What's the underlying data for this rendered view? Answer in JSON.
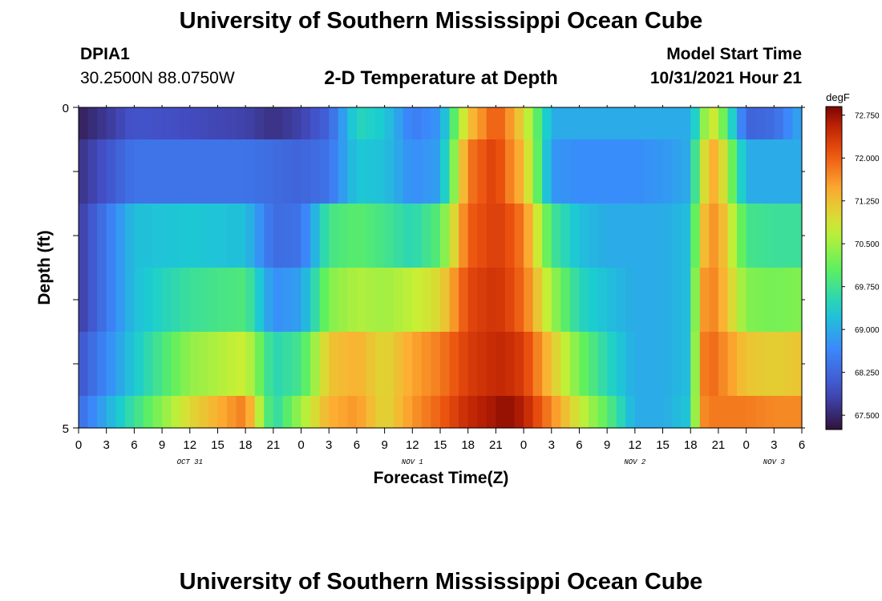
{
  "page": {
    "title_top": "University of Southern Mississippi Ocean Cube",
    "title_bottom": "University of Southern Mississippi Ocean Cube",
    "station_id": "DPIA1",
    "station_coords": "30.2500N  88.0750W",
    "center_title": "2-D Temperature at Depth",
    "model_start_label": "Model Start Time",
    "model_start_value": "10/31/2021 Hour 21"
  },
  "chart_data": {
    "type": "heatmap",
    "title": "2-D Temperature at Depth",
    "xlabel": "Forecast Time(Z)",
    "ylabel": "Depth (ft)",
    "y_tick_labels": [
      "0",
      "5"
    ],
    "ylim": [
      0,
      5
    ],
    "x_tick_labels": [
      "0",
      "3",
      "6",
      "9",
      "12",
      "15",
      "18",
      "21",
      "0",
      "3",
      "6",
      "9",
      "12",
      "15",
      "18",
      "21",
      "0",
      "3",
      "6",
      "9",
      "12",
      "15",
      "18",
      "21",
      "0",
      "3",
      "6"
    ],
    "date_labels": [
      {
        "text": "OCT 31",
        "at_hour": 12
      },
      {
        "text": "NOV 1",
        "at_hour": 36
      },
      {
        "text": "NOV 2",
        "at_hour": 60
      },
      {
        "text": "NOV 3",
        "at_hour": 75
      }
    ],
    "colorbar": {
      "units": "degF",
      "min": 67.25,
      "max": 72.9,
      "tick_values": [
        67.5,
        68.25,
        69.0,
        69.75,
        70.5,
        71.25,
        72.0,
        72.75
      ],
      "tick_labels": [
        "67.500",
        "68.250",
        "69.000",
        "69.750",
        "70.500",
        "71.250",
        "72.000",
        "72.750"
      ]
    },
    "hours": [
      0,
      6,
      12,
      18,
      21,
      24,
      27,
      30,
      33,
      36,
      39,
      42,
      45,
      46,
      48,
      51,
      54,
      57,
      60,
      63,
      66,
      67,
      68,
      69,
      70,
      72,
      75,
      78
    ],
    "rows": [
      {
        "depth_band": "0-0.5",
        "temps": [
          67.4,
          68.0,
          67.9,
          67.8,
          67.6,
          67.8,
          68.2,
          69.5,
          69.3,
          68.5,
          68.8,
          71.2,
          72.1,
          71.8,
          71.0,
          69.0,
          69.0,
          69.0,
          69.0,
          69.0,
          69.0,
          69.8,
          71.0,
          70.6,
          69.8,
          68.2,
          68.3,
          69.0
        ]
      },
      {
        "depth_band": "0.5-1.5",
        "temps": [
          67.6,
          68.4,
          68.4,
          68.4,
          68.3,
          68.2,
          68.4,
          69.3,
          69.2,
          68.7,
          68.9,
          71.8,
          72.3,
          71.9,
          71.3,
          68.8,
          68.7,
          68.7,
          68.7,
          68.8,
          69.0,
          70.5,
          71.4,
          71.4,
          70.5,
          69.0,
          69.0,
          69.0
        ]
      },
      {
        "depth_band": "1.5-2.5",
        "temps": [
          67.7,
          69.2,
          69.3,
          69.2,
          68.3,
          68.4,
          69.8,
          70.0,
          69.8,
          69.5,
          70.0,
          72.0,
          72.3,
          72.2,
          71.8,
          69.8,
          69.2,
          69.0,
          69.0,
          69.0,
          69.2,
          71.0,
          71.6,
          71.6,
          71.0,
          69.8,
          69.7,
          69.7
        ]
      },
      {
        "depth_band": "2.5-3.5",
        "temps": [
          67.7,
          69.2,
          69.7,
          69.9,
          68.7,
          68.9,
          70.3,
          70.6,
          70.5,
          70.7,
          71.0,
          72.2,
          72.4,
          72.3,
          71.9,
          70.5,
          69.5,
          69.2,
          69.0,
          69.0,
          69.2,
          71.4,
          71.8,
          71.6,
          71.2,
          70.3,
          70.2,
          70.3
        ]
      },
      {
        "depth_band": "3.5-4.5",
        "temps": [
          68.0,
          69.3,
          70.4,
          70.8,
          69.5,
          69.8,
          71.2,
          71.4,
          71.0,
          71.5,
          71.8,
          72.3,
          72.5,
          72.5,
          72.3,
          71.2,
          70.2,
          69.5,
          69.0,
          69.0,
          69.2,
          71.6,
          72.0,
          71.8,
          71.6,
          71.2,
          71.1,
          71.2
        ]
      },
      {
        "depth_band": "4.5-5",
        "temps": [
          68.3,
          69.7,
          71.0,
          71.8,
          69.5,
          70.5,
          71.4,
          71.6,
          71.0,
          71.6,
          72.0,
          72.5,
          72.7,
          72.8,
          72.6,
          71.7,
          70.8,
          70.0,
          69.0,
          69.0,
          69.3,
          71.6,
          71.8,
          71.8,
          71.8,
          71.8,
          71.7,
          71.7
        ]
      }
    ]
  }
}
